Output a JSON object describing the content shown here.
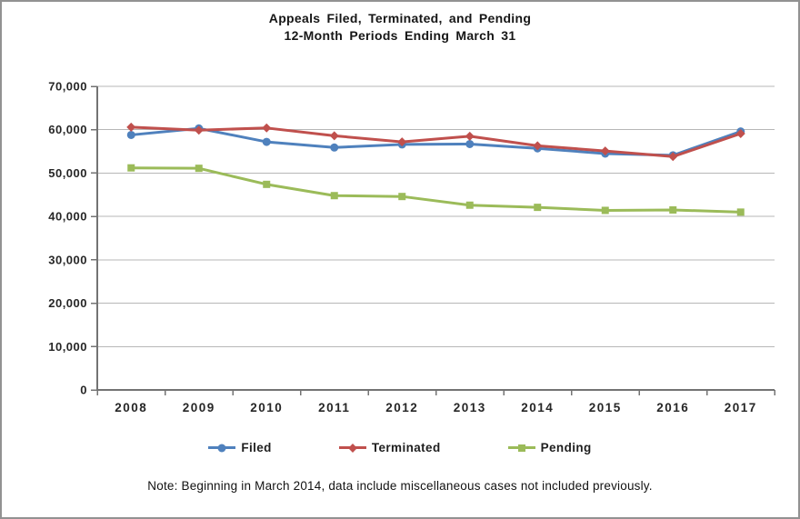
{
  "note": "Note: Beginning in March 2014, data include miscellaneous cases not included previously.",
  "chart_data": {
    "type": "line",
    "title": "Appeals Filed, Terminated, and Pending",
    "subtitle": "12-Month Periods Ending March 31",
    "categories": [
      "2008",
      "2009",
      "2010",
      "2011",
      "2012",
      "2013",
      "2014",
      "2015",
      "2016",
      "2017"
    ],
    "series": [
      {
        "name": "Filed",
        "color": "#4F81BD",
        "marker": "circle",
        "values": [
          58800,
          60300,
          57200,
          55900,
          56600,
          56700,
          55700,
          54500,
          54100,
          59600
        ]
      },
      {
        "name": "Terminated",
        "color": "#C0504D",
        "marker": "diamond",
        "values": [
          60600,
          59900,
          60400,
          58600,
          57200,
          58500,
          56300,
          55100,
          53800,
          59100
        ]
      },
      {
        "name": "Pending",
        "color": "#9BBB59",
        "marker": "square",
        "values": [
          51200,
          51100,
          47400,
          44800,
          44600,
          42600,
          42100,
          41400,
          41500,
          41000
        ]
      }
    ],
    "xlabel": "",
    "ylabel": "",
    "ylim": [
      0,
      70000
    ],
    "ytick_interval": 10000,
    "ytick_labels": [
      "0",
      "10,000",
      "20,000",
      "30,000",
      "40,000",
      "50,000",
      "60,000",
      "70,000"
    ],
    "grid": "horizontal",
    "legend_position": "bottom",
    "axis_color": "#737373",
    "grid_color": "#b7b7b7",
    "text_color": "#262626"
  }
}
